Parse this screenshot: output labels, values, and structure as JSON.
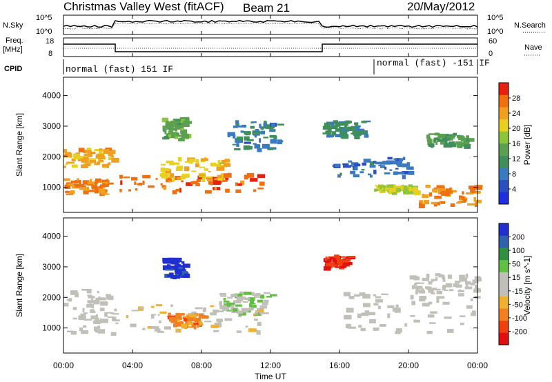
{
  "header": {
    "title": "Christmas Valley West (fitACF)",
    "beam": "Beam 21",
    "date": "20/May/2012"
  },
  "top_panels": {
    "nsky_label": "N.Sky",
    "nsky_ticks": [
      "10^5",
      "10^0"
    ],
    "nsearch_label": "N.Search",
    "nsearch_ticks": [
      "10^5",
      "10^0"
    ],
    "freq_label": "Freq.",
    "freq_unit": "[MHz]",
    "freq_ticks": [
      "18",
      "8"
    ],
    "nave_label": "Nave",
    "nave_ticks": [
      "60",
      "0"
    ],
    "cpid_label": "CPID",
    "cpid_segments": [
      {
        "label": "normal (fast) 151 IF",
        "start_h": 0,
        "end_h": 18
      },
      {
        "label": "normal (fast) -151 IF",
        "start_h": 18,
        "end_h": 24
      }
    ]
  },
  "colors": {
    "power": [
      "#1f2fe0",
      "#2b4fbf",
      "#3a7ac0",
      "#3e8f5a",
      "#5aa050",
      "#8cc43c",
      "#e8d020",
      "#f0a020",
      "#f07010",
      "#e82010"
    ],
    "velocity": [
      "#e01010",
      "#f04010",
      "#f08020",
      "#f0b030",
      "#c0c0b8",
      "#c0c0b8",
      "#60c040",
      "#309040",
      "#3060b0",
      "#2030d0"
    ]
  },
  "chart_data": [
    {
      "type": "heatmap",
      "title": "",
      "xlabel": "",
      "ylabel": "Slant Range [km]",
      "colorbar_label": "Power [dB]",
      "colorbar_ticks": [
        "28",
        "24",
        "20",
        "16",
        "12",
        "8",
        "4"
      ],
      "color_range": [
        0,
        30
      ],
      "x_ticks": [
        "00:00",
        "04:00",
        "08:00",
        "12:00",
        "16:00",
        "20:00",
        "00:00"
      ],
      "xlim_hours": [
        0,
        24
      ],
      "y_ticks": [
        "4000",
        "3000",
        "2000",
        "1000"
      ],
      "ylim_km": [
        180,
        4600
      ],
      "echo_regions": [
        {
          "t0": 0.0,
          "t1": 2.8,
          "r0": 1700,
          "r1": 2300,
          "value": 22
        },
        {
          "t0": 0.0,
          "t1": 2.6,
          "r0": 800,
          "r1": 1300,
          "value": 24
        },
        {
          "t0": 3.0,
          "t1": 11.5,
          "r0": 900,
          "r1": 1500,
          "value": 26
        },
        {
          "t0": 5.5,
          "t1": 9.5,
          "r0": 1300,
          "r1": 2000,
          "value": 20
        },
        {
          "t0": 5.7,
          "t1": 7.0,
          "r0": 2600,
          "r1": 3300,
          "value": 14
        },
        {
          "t0": 9.5,
          "t1": 12.5,
          "r0": 2200,
          "r1": 3200,
          "value": 8
        },
        {
          "t0": 15.0,
          "t1": 17.5,
          "r0": 2700,
          "r1": 3200,
          "value": 10
        },
        {
          "t0": 15.5,
          "t1": 20.0,
          "r0": 1400,
          "r1": 2000,
          "value": 7
        },
        {
          "t0": 18.0,
          "t1": 20.5,
          "r0": 900,
          "r1": 1100,
          "value": 18
        },
        {
          "t0": 20.5,
          "t1": 24.0,
          "r0": 400,
          "r1": 1100,
          "value": 24
        },
        {
          "t0": 21.0,
          "t1": 23.5,
          "r0": 2400,
          "r1": 2800,
          "value": 12
        }
      ]
    },
    {
      "type": "heatmap",
      "title": "",
      "xlabel": "Time UT",
      "ylabel": "Slant Range [km]",
      "colorbar_label": "Velocity [m s^-1]",
      "colorbar_ticks": [
        "200",
        "100",
        "50",
        "15",
        "-15",
        "-50",
        "-100",
        "-200"
      ],
      "color_range": [
        -250,
        250
      ],
      "x_ticks": [
        "00:00",
        "04:00",
        "08:00",
        "12:00",
        "16:00",
        "20:00",
        "00:00"
      ],
      "xlim_hours": [
        0,
        24
      ],
      "y_ticks": [
        "4000",
        "3000",
        "2000",
        "1000"
      ],
      "ylim_km": [
        180,
        4600
      ],
      "echo_regions": [
        {
          "t0": 0.0,
          "t1": 3.0,
          "r0": 800,
          "r1": 2300,
          "value": 0
        },
        {
          "t0": 3.0,
          "t1": 11.5,
          "r0": 900,
          "r1": 1800,
          "value": -30
        },
        {
          "t0": 6.0,
          "t1": 8.0,
          "r0": 1100,
          "r1": 1500,
          "value": -120
        },
        {
          "t0": 5.7,
          "t1": 7.0,
          "r0": 2700,
          "r1": 3300,
          "value": 220
        },
        {
          "t0": 9.0,
          "t1": 12.0,
          "r0": 1500,
          "r1": 2200,
          "value": 40
        },
        {
          "t0": 15.0,
          "t1": 16.5,
          "r0": 3000,
          "r1": 3400,
          "value": -200
        },
        {
          "t0": 16.0,
          "t1": 24.0,
          "r0": 800,
          "r1": 2200,
          "value": 0
        },
        {
          "t0": 20.0,
          "t1": 24.0,
          "r0": 2200,
          "r1": 2800,
          "value": 0
        }
      ]
    }
  ]
}
